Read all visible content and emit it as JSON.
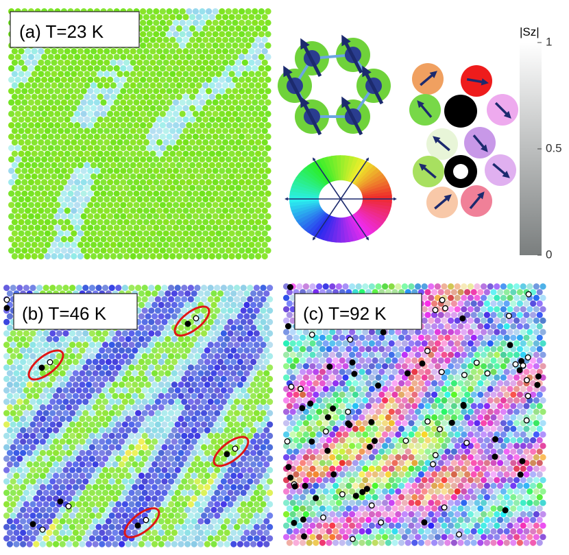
{
  "panels": [
    {
      "label": "(a) T=23 K"
    },
    {
      "label": "(b) T=46 K"
    },
    {
      "label": "(c) T=92 K"
    }
  ],
  "colorbar": {
    "label": "|Sz|",
    "lim": [
      0,
      1
    ],
    "ticks": [
      0,
      0.5,
      1
    ]
  }
}
